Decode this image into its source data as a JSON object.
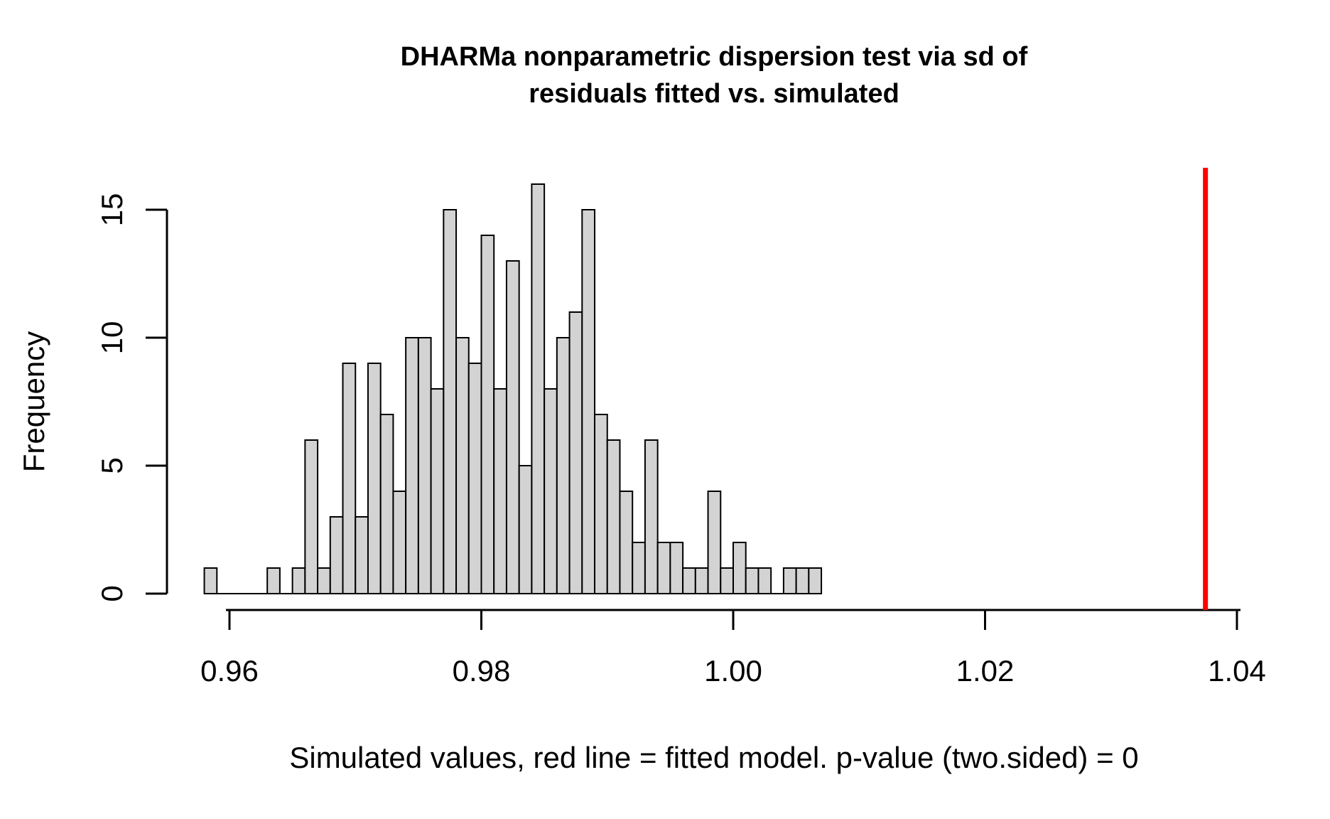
{
  "chart_data": {
    "type": "bar",
    "subtype": "histogram",
    "title_lines": [
      "DHARMa nonparametric dispersion test via sd of",
      "residuals fitted vs. simulated"
    ],
    "xlabel": "Simulated values, red line = fitted model. p-value (two.sided) = 0",
    "ylabel": "Frequency",
    "p_value_text": "p-value (two.sided) = 0",
    "bin_start": 0.958,
    "bin_width": 0.001,
    "counts": [
      1,
      0,
      0,
      0,
      0,
      1,
      0,
      1,
      6,
      1,
      3,
      9,
      3,
      9,
      7,
      4,
      10,
      10,
      8,
      15,
      10,
      9,
      14,
      8,
      13,
      5,
      16,
      8,
      10,
      11,
      15,
      7,
      6,
      4,
      2,
      6,
      2,
      2,
      1,
      1,
      4,
      1,
      2,
      1,
      1,
      0,
      1,
      1,
      1
    ],
    "total_simulations": 250,
    "fitted_line_value": 1.0375,
    "x_ticks": [
      0.96,
      0.98,
      1.0,
      1.02,
      1.04
    ],
    "x_tick_labels": [
      "0.96",
      "0.98",
      "1.00",
      "1.02",
      "1.04"
    ],
    "y_ticks": [
      0,
      5,
      10,
      15
    ],
    "y_tick_labels": [
      "0",
      "5",
      "10",
      "15"
    ],
    "xlim": [
      0.9548,
      1.0407
    ],
    "ylim": [
      0,
      16.6
    ],
    "grid": false,
    "legend_position": "none",
    "colors": {
      "bar_fill": "#D3D3D3",
      "bar_border": "#000000",
      "fitted_line": "#FF0000",
      "axis": "#000000",
      "text": "#000000",
      "background": "#FFFFFF"
    }
  }
}
